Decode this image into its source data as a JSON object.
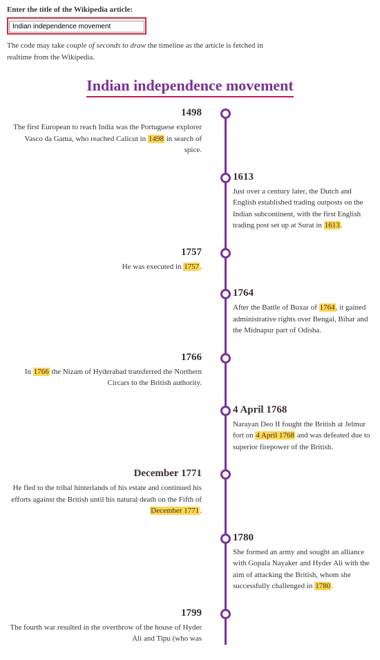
{
  "input_section": {
    "label": "Enter the title of the Wikipedia article:",
    "value": "Indian independence movement",
    "caption_pre": "The code may take ",
    "caption_em": "couple of seconds to draw",
    "caption_post": " the timeline as the article is fetched in realtime from the Wikipedia."
  },
  "title": "Indian independence movement",
  "colors": {
    "accent": "#7b3294",
    "underline": "#c2185b",
    "input_border": "#d7263d",
    "highlight": "#ffd54f"
  },
  "events": [
    {
      "side": "left",
      "date": "1498",
      "text_pre": "The first European to reach India was the Portuguese explorer Vasco da Gama, who reached Calicut in ",
      "hl": "1498",
      "text_post": " in search of spice."
    },
    {
      "side": "right",
      "date": "1613",
      "text_pre": "Just over a century later, the Dutch and English established trading outposts on the Indian subcontinent, with the first English trading post set up at Surat in ",
      "hl": "1613",
      "text_post": "."
    },
    {
      "side": "left",
      "date": "1757",
      "text_pre": "He was executed in ",
      "hl": "1757",
      "text_post": "."
    },
    {
      "side": "right",
      "date": "1764",
      "text_pre": "After the Battle of Buxar of ",
      "hl": "1764",
      "text_post": ", it gained administrative rights over Bengal, Bihar and the Midnapur part of Odisha."
    },
    {
      "side": "left",
      "date": "1766",
      "text_pre": "In ",
      "hl": "1766",
      "text_post": " the Nizam of Hyderabad transferred the Northern Circars to the British authority."
    },
    {
      "side": "right",
      "date": "4 April 1768",
      "text_pre": "Narayan Deo II fought the British at Jelmur fort on ",
      "hl": "4 April 1768",
      "text_post": " and was defeated due to superior firepower of the British."
    },
    {
      "side": "left",
      "date": "December 1771",
      "text_pre": "He fled to the tribal hinterlands of his estate and continued his efforts against the British until his natural death on the Fifth of ",
      "hl": "December 1771",
      "text_post": "."
    },
    {
      "side": "right",
      "date": "1780",
      "text_pre": "She formed an army and sought an alliance with Gopala Nayaker and Hyder Ali with the aim of attacking the British, whom she successfully challenged in ",
      "hl": "1780",
      "text_post": "."
    },
    {
      "side": "left",
      "date": "1799",
      "text_pre": "The fourth war resulted in the overthrow of the house of Hyder Ali and Tipu (who was",
      "hl": "",
      "text_post": ""
    }
  ]
}
